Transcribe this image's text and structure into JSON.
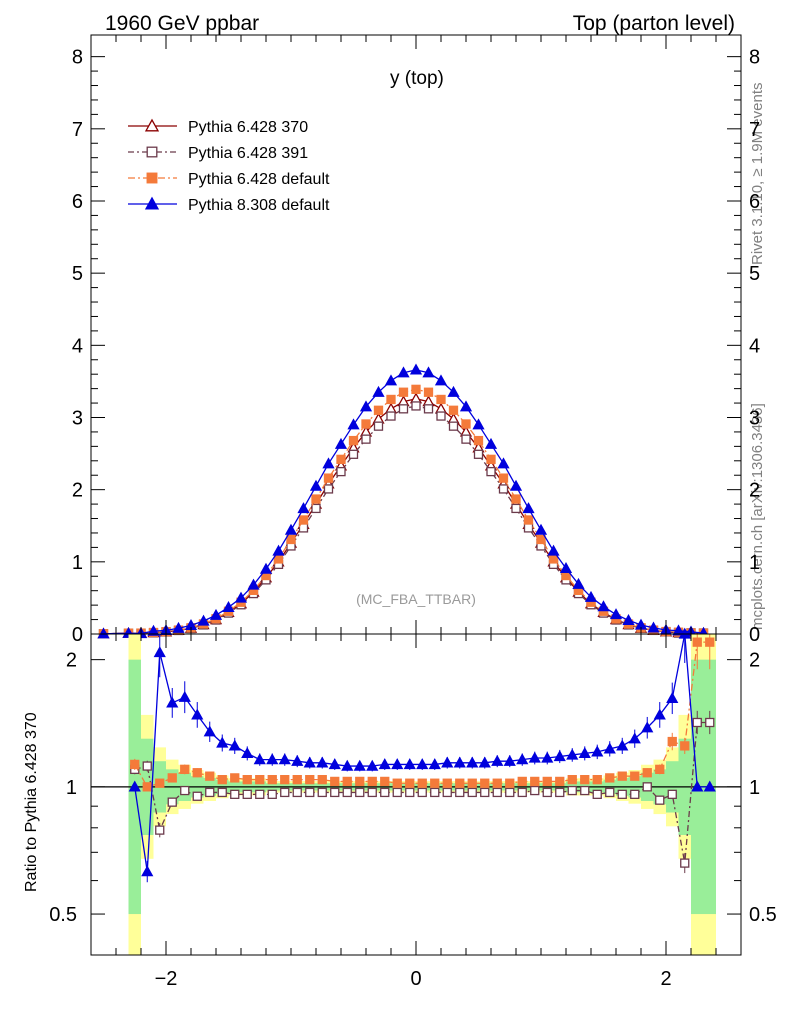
{
  "header": {
    "left": "1960 GeV ppbar",
    "right": "Top (parton level)"
  },
  "side_labels": {
    "rivet": "Rivet 3.1.10, ≥ 1.9M events",
    "mcplots": "mcplots.cern.ch [arXiv:1306.3436]"
  },
  "chart_data": [
    {
      "type": "line",
      "title": "y (top)",
      "annotation": "(MC_FBA_TTBAR)",
      "xlim": [
        -2.6,
        2.6
      ],
      "ylim": [
        0,
        8.3
      ],
      "yticks": [
        "0",
        "1",
        "2",
        "3",
        "4",
        "5",
        "6",
        "7",
        "8"
      ],
      "grid": false,
      "legend_position": "top-left",
      "x": [
        -2.5,
        -2.3,
        -2.2,
        -2.1,
        -2.0,
        -1.9,
        -1.8,
        -1.7,
        -1.6,
        -1.5,
        -1.4,
        -1.3,
        -1.2,
        -1.1,
        -1.0,
        -0.9,
        -0.8,
        -0.7,
        -0.6,
        -0.5,
        -0.4,
        -0.3,
        -0.2,
        -0.1,
        0.0,
        0.1,
        0.2,
        0.3,
        0.4,
        0.5,
        0.6,
        0.7,
        0.8,
        0.9,
        1.0,
        1.1,
        1.2,
        1.3,
        1.4,
        1.5,
        1.6,
        1.7,
        1.8,
        1.9,
        2.0,
        2.1,
        2.2,
        2.3
      ],
      "series": [
        {
          "name": "Pythia 6.428 370",
          "color": "#8b0000",
          "marker": "open-triangle",
          "values": [
            0.003,
            0.01,
            0.012,
            0.02,
            0.03,
            0.05,
            0.08,
            0.13,
            0.2,
            0.3,
            0.42,
            0.58,
            0.78,
            1.0,
            1.26,
            1.52,
            1.8,
            2.08,
            2.33,
            2.58,
            2.8,
            2.98,
            3.12,
            3.22,
            3.26,
            3.22,
            3.12,
            2.98,
            2.8,
            2.58,
            2.33,
            2.08,
            1.8,
            1.52,
            1.26,
            1.0,
            0.78,
            0.58,
            0.42,
            0.3,
            0.2,
            0.13,
            0.08,
            0.05,
            0.03,
            0.02,
            0.012,
            0.01
          ]
        },
        {
          "name": "Pythia 6.428 391",
          "color": "#6b3a4b",
          "marker": "open-square",
          "values": [
            0.003,
            0.011,
            0.012,
            0.016,
            0.028,
            0.049,
            0.076,
            0.126,
            0.194,
            0.29,
            0.405,
            0.56,
            0.75,
            0.965,
            1.22,
            1.47,
            1.74,
            2.01,
            2.25,
            2.49,
            2.7,
            2.88,
            3.02,
            3.12,
            3.16,
            3.12,
            3.02,
            2.88,
            2.7,
            2.49,
            2.25,
            2.01,
            1.74,
            1.47,
            1.22,
            0.965,
            0.75,
            0.56,
            0.405,
            0.29,
            0.194,
            0.126,
            0.08,
            0.05,
            0.03,
            0.013,
            0.016,
            0.014
          ]
        },
        {
          "name": "Pythia 6.428 default",
          "color": "#f47a3a",
          "marker": "filled-square",
          "values": [
            0.003,
            0.011,
            0.012,
            0.021,
            0.032,
            0.054,
            0.086,
            0.14,
            0.212,
            0.315,
            0.44,
            0.605,
            0.81,
            1.04,
            1.31,
            1.58,
            1.87,
            2.16,
            2.42,
            2.68,
            2.91,
            3.1,
            3.25,
            3.35,
            3.39,
            3.35,
            3.25,
            3.1,
            2.91,
            2.68,
            2.42,
            2.16,
            1.87,
            1.58,
            1.31,
            1.04,
            0.81,
            0.605,
            0.44,
            0.315,
            0.21,
            0.138,
            0.086,
            0.054,
            0.034,
            0.025,
            0.014,
            0.011
          ]
        },
        {
          "name": "Pythia 8.308 default",
          "color": "#0000dd",
          "marker": "filled-triangle",
          "values": [
            0.003,
            0.01,
            0.008,
            0.04,
            0.05,
            0.08,
            0.12,
            0.18,
            0.26,
            0.37,
            0.5,
            0.68,
            0.9,
            1.15,
            1.44,
            1.74,
            2.05,
            2.36,
            2.63,
            2.9,
            3.15,
            3.35,
            3.51,
            3.62,
            3.66,
            3.62,
            3.51,
            3.35,
            3.15,
            2.9,
            2.63,
            2.36,
            2.05,
            1.74,
            1.44,
            1.15,
            0.91,
            0.69,
            0.51,
            0.38,
            0.27,
            0.19,
            0.125,
            0.085,
            0.055,
            0.045,
            0.03,
            0.012
          ]
        }
      ]
    },
    {
      "type": "line",
      "ylabel": "Ratio to Pythia 6.428 370",
      "xlim": [
        -2.6,
        2.6
      ],
      "ylim": [
        0.4,
        2.3
      ],
      "scale": "log",
      "reference_line": 1,
      "xticks": [
        "−2",
        "0",
        "2"
      ],
      "yticks": [
        "0.5",
        "1",
        "2"
      ],
      "grid": false,
      "x": [
        -2.25,
        -2.15,
        -2.05,
        -1.95,
        -1.85,
        -1.75,
        -1.65,
        -1.55,
        -1.45,
        -1.35,
        -1.25,
        -1.15,
        -1.05,
        -0.95,
        -0.85,
        -0.75,
        -0.65,
        -0.55,
        -0.45,
        -0.35,
        -0.25,
        -0.15,
        -0.05,
        0.05,
        0.15,
        0.25,
        0.35,
        0.45,
        0.55,
        0.65,
        0.75,
        0.85,
        0.95,
        1.05,
        1.15,
        1.25,
        1.35,
        1.45,
        1.55,
        1.65,
        1.75,
        1.85,
        1.95,
        2.05,
        2.15,
        2.25,
        2.35
      ],
      "band_green": [
        2.0,
        1.3,
        1.15,
        1.1,
        1.08,
        1.06,
        1.05,
        1.04,
        1.03,
        1.03,
        1.03,
        1.02,
        1.02,
        1.02,
        1.02,
        1.02,
        1.02,
        1.02,
        1.02,
        1.02,
        1.02,
        1.02,
        1.02,
        1.02,
        1.02,
        1.02,
        1.02,
        1.02,
        1.02,
        1.02,
        1.02,
        1.02,
        1.02,
        1.02,
        1.02,
        1.03,
        1.03,
        1.03,
        1.04,
        1.05,
        1.06,
        1.08,
        1.1,
        1.15,
        1.3,
        2.0,
        2.0
      ],
      "series": [
        {
          "name": "Pythia 6.428 391",
          "color": "#6b3a4b",
          "values": [
            1.1,
            1.12,
            0.79,
            0.92,
            0.98,
            0.95,
            0.97,
            0.97,
            0.96,
            0.96,
            0.96,
            0.96,
            0.97,
            0.97,
            0.97,
            0.97,
            0.97,
            0.97,
            0.97,
            0.97,
            0.97,
            0.97,
            0.97,
            0.97,
            0.97,
            0.97,
            0.97,
            0.97,
            0.97,
            0.97,
            0.97,
            0.97,
            0.98,
            0.97,
            0.97,
            0.98,
            0.98,
            0.96,
            0.97,
            0.96,
            0.96,
            1.0,
            0.93,
            0.96,
            0.66,
            1.42,
            1.42
          ]
        },
        {
          "name": "Pythia 6.428 default",
          "color": "#f47a3a",
          "values": [
            1.13,
            1.0,
            1.02,
            1.05,
            1.1,
            1.08,
            1.06,
            1.04,
            1.05,
            1.04,
            1.04,
            1.04,
            1.04,
            1.04,
            1.04,
            1.04,
            1.03,
            1.03,
            1.03,
            1.03,
            1.03,
            1.02,
            1.02,
            1.02,
            1.02,
            1.02,
            1.02,
            1.02,
            1.02,
            1.02,
            1.02,
            1.03,
            1.03,
            1.03,
            1.03,
            1.04,
            1.04,
            1.04,
            1.05,
            1.06,
            1.06,
            1.08,
            1.1,
            1.28,
            1.25,
            2.2,
            2.2
          ]
        },
        {
          "name": "Pythia 8.308 default",
          "color": "#0000dd",
          "values": [
            1.0,
            0.63,
            2.08,
            1.58,
            1.63,
            1.48,
            1.35,
            1.27,
            1.25,
            1.2,
            1.16,
            1.16,
            1.16,
            1.15,
            1.14,
            1.14,
            1.13,
            1.12,
            1.12,
            1.12,
            1.13,
            1.13,
            1.13,
            1.13,
            1.13,
            1.14,
            1.14,
            1.14,
            1.14,
            1.15,
            1.15,
            1.16,
            1.17,
            1.17,
            1.18,
            1.19,
            1.2,
            1.21,
            1.23,
            1.25,
            1.3,
            1.38,
            1.48,
            1.62,
            2.3,
            1.0,
            1.0
          ]
        }
      ]
    }
  ]
}
